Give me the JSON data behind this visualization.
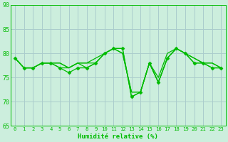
{
  "title": "",
  "xlabel": "Humidité relative (%)",
  "ylabel": "",
  "background_color": "#cceedd",
  "grid_color": "#aacccc",
  "line_color": "#00bb00",
  "xlim": [
    -0.5,
    23.5
  ],
  "ylim": [
    65,
    90
  ],
  "yticks": [
    65,
    70,
    75,
    80,
    85,
    90
  ],
  "xticks": [
    0,
    1,
    2,
    3,
    4,
    5,
    6,
    7,
    8,
    9,
    10,
    11,
    12,
    13,
    14,
    15,
    16,
    17,
    18,
    19,
    20,
    21,
    22,
    23
  ],
  "series": [
    [
      79,
      77,
      77,
      78,
      78,
      77,
      76,
      77,
      77,
      78,
      80,
      81,
      81,
      71,
      72,
      78,
      74,
      79,
      81,
      80,
      78,
      78,
      77,
      77
    ],
    [
      79,
      77,
      77,
      78,
      78,
      78,
      77,
      78,
      77,
      78,
      80,
      81,
      81,
      71,
      72,
      78,
      75,
      80,
      81,
      80,
      79,
      78,
      78,
      77
    ],
    [
      79,
      77,
      77,
      78,
      78,
      77,
      77,
      78,
      78,
      79,
      80,
      81,
      80,
      72,
      72,
      78,
      74,
      79,
      81,
      80,
      79,
      78,
      78,
      77
    ],
    [
      79,
      77,
      77,
      78,
      78,
      78,
      77,
      78,
      78,
      78,
      80,
      81,
      80,
      72,
      72,
      78,
      74,
      79,
      81,
      80,
      78,
      78,
      77,
      77
    ]
  ],
  "marker_size": 2.5,
  "line_width": 0.9
}
